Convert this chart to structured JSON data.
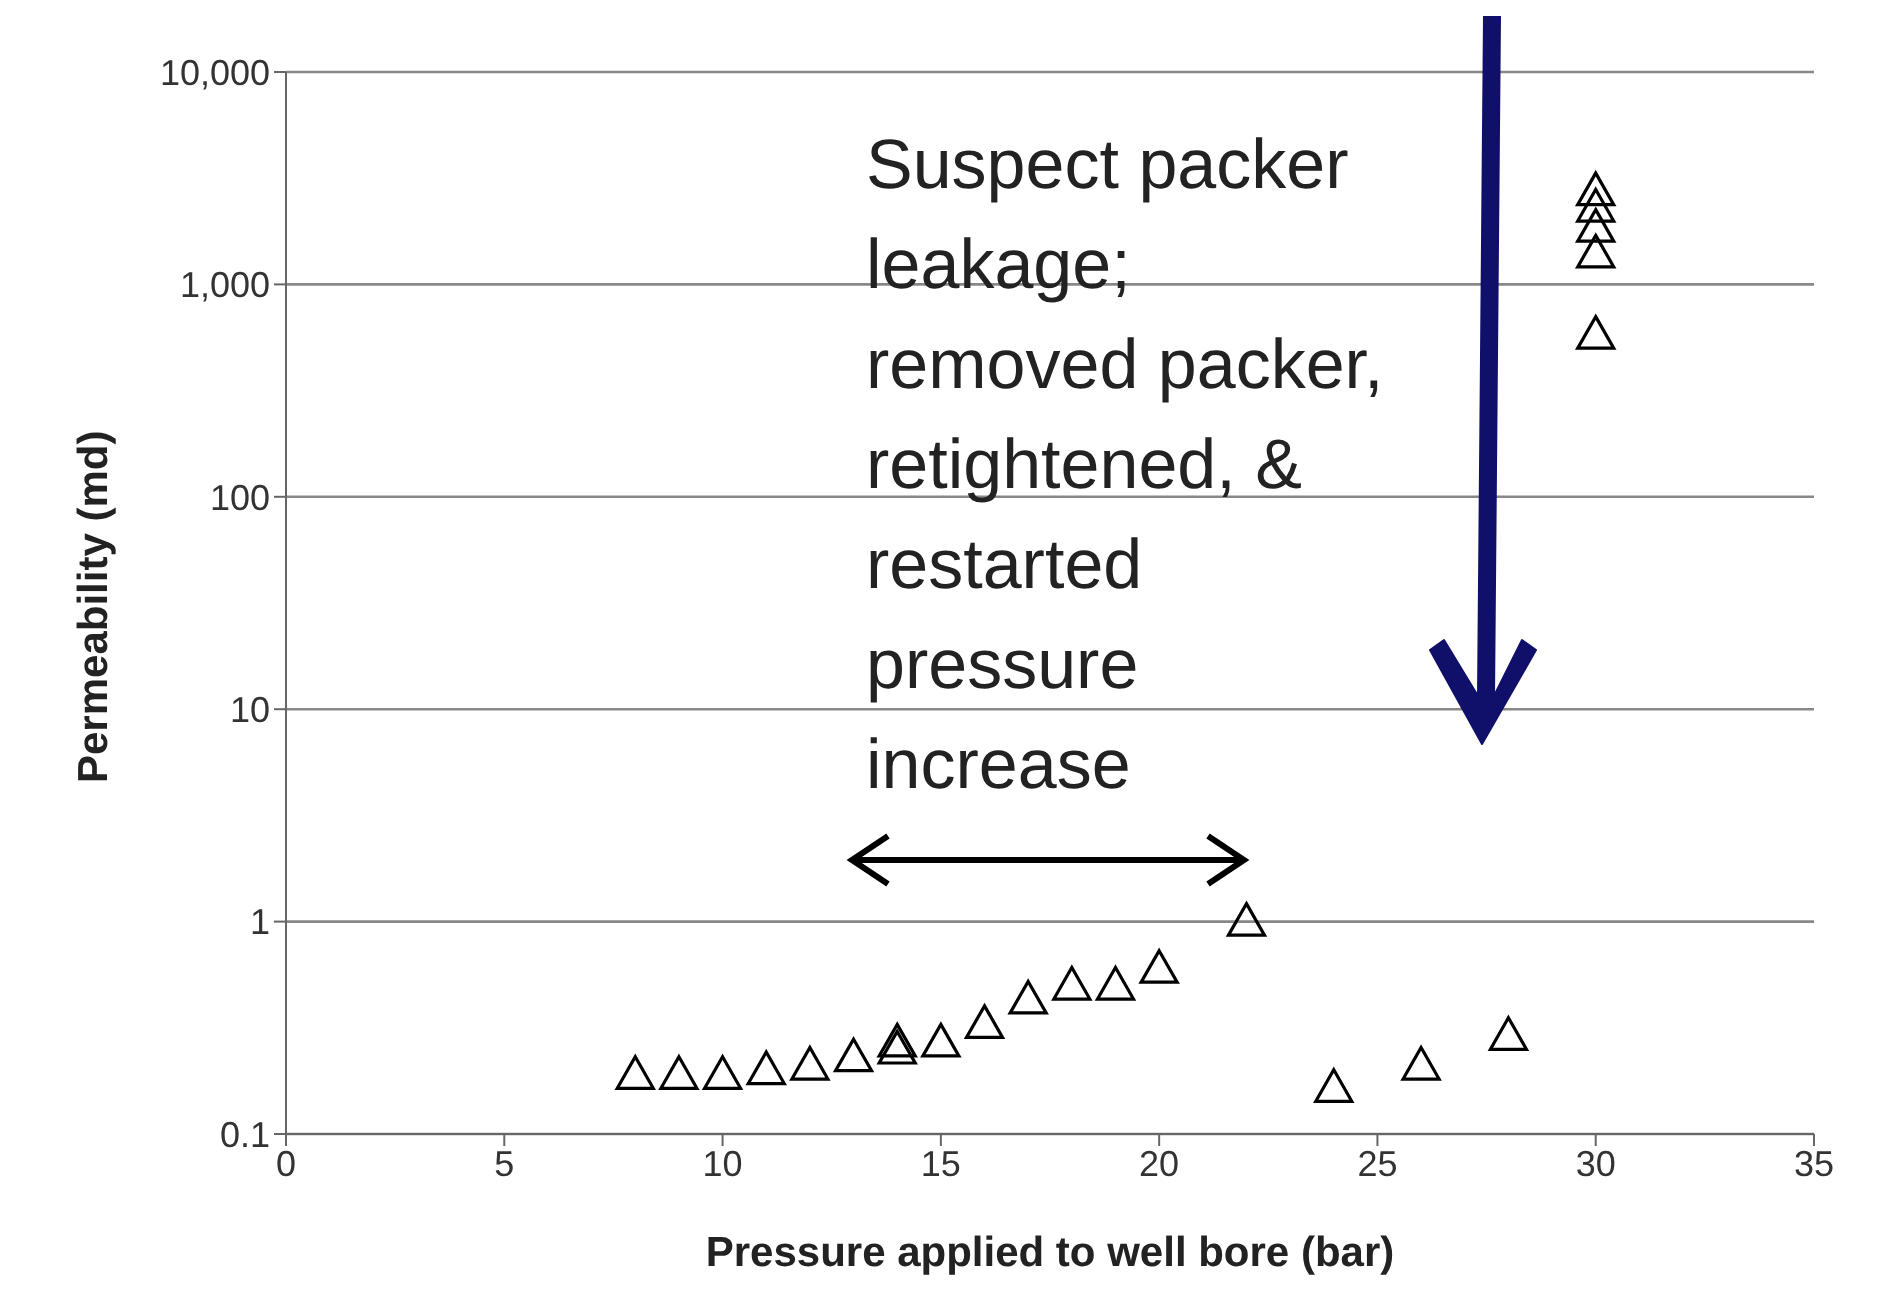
{
  "chart_data": {
    "type": "scatter",
    "xlabel": "Pressure applied to well bore (bar)",
    "ylabel": "Permeability (md)",
    "x": [
      8,
      9,
      10,
      11,
      12,
      13,
      14,
      14,
      15,
      16,
      17,
      18,
      19,
      20,
      22,
      24,
      26,
      28,
      30,
      30,
      30,
      30,
      30
    ],
    "series": [
      {
        "color": "#000000",
        "values": [
          0.19,
          0.19,
          0.19,
          0.2,
          0.21,
          0.23,
          0.25,
          0.27,
          0.27,
          0.33,
          0.43,
          0.5,
          0.5,
          0.6,
          1.0,
          0.165,
          0.21,
          0.29,
          2750,
          2300,
          1850,
          1400,
          580
        ]
      }
    ],
    "xlim": [
      0,
      35
    ],
    "xticks": [
      0,
      5,
      10,
      15,
      20,
      25,
      30,
      35
    ],
    "ylim": [
      0.1,
      10000
    ],
    "yticks": [
      0.1,
      1,
      10,
      100,
      {
        "value": 1000,
        "label": "1,000"
      },
      {
        "value": 10000,
        "label": "10,000"
      }
    ],
    "log": "y",
    "grid": "y",
    "marker": "triangle",
    "legend": false,
    "annotations": [
      "Suspect packer leakage; removed packer, retightened, & restarted pressure increase"
    ]
  }
}
